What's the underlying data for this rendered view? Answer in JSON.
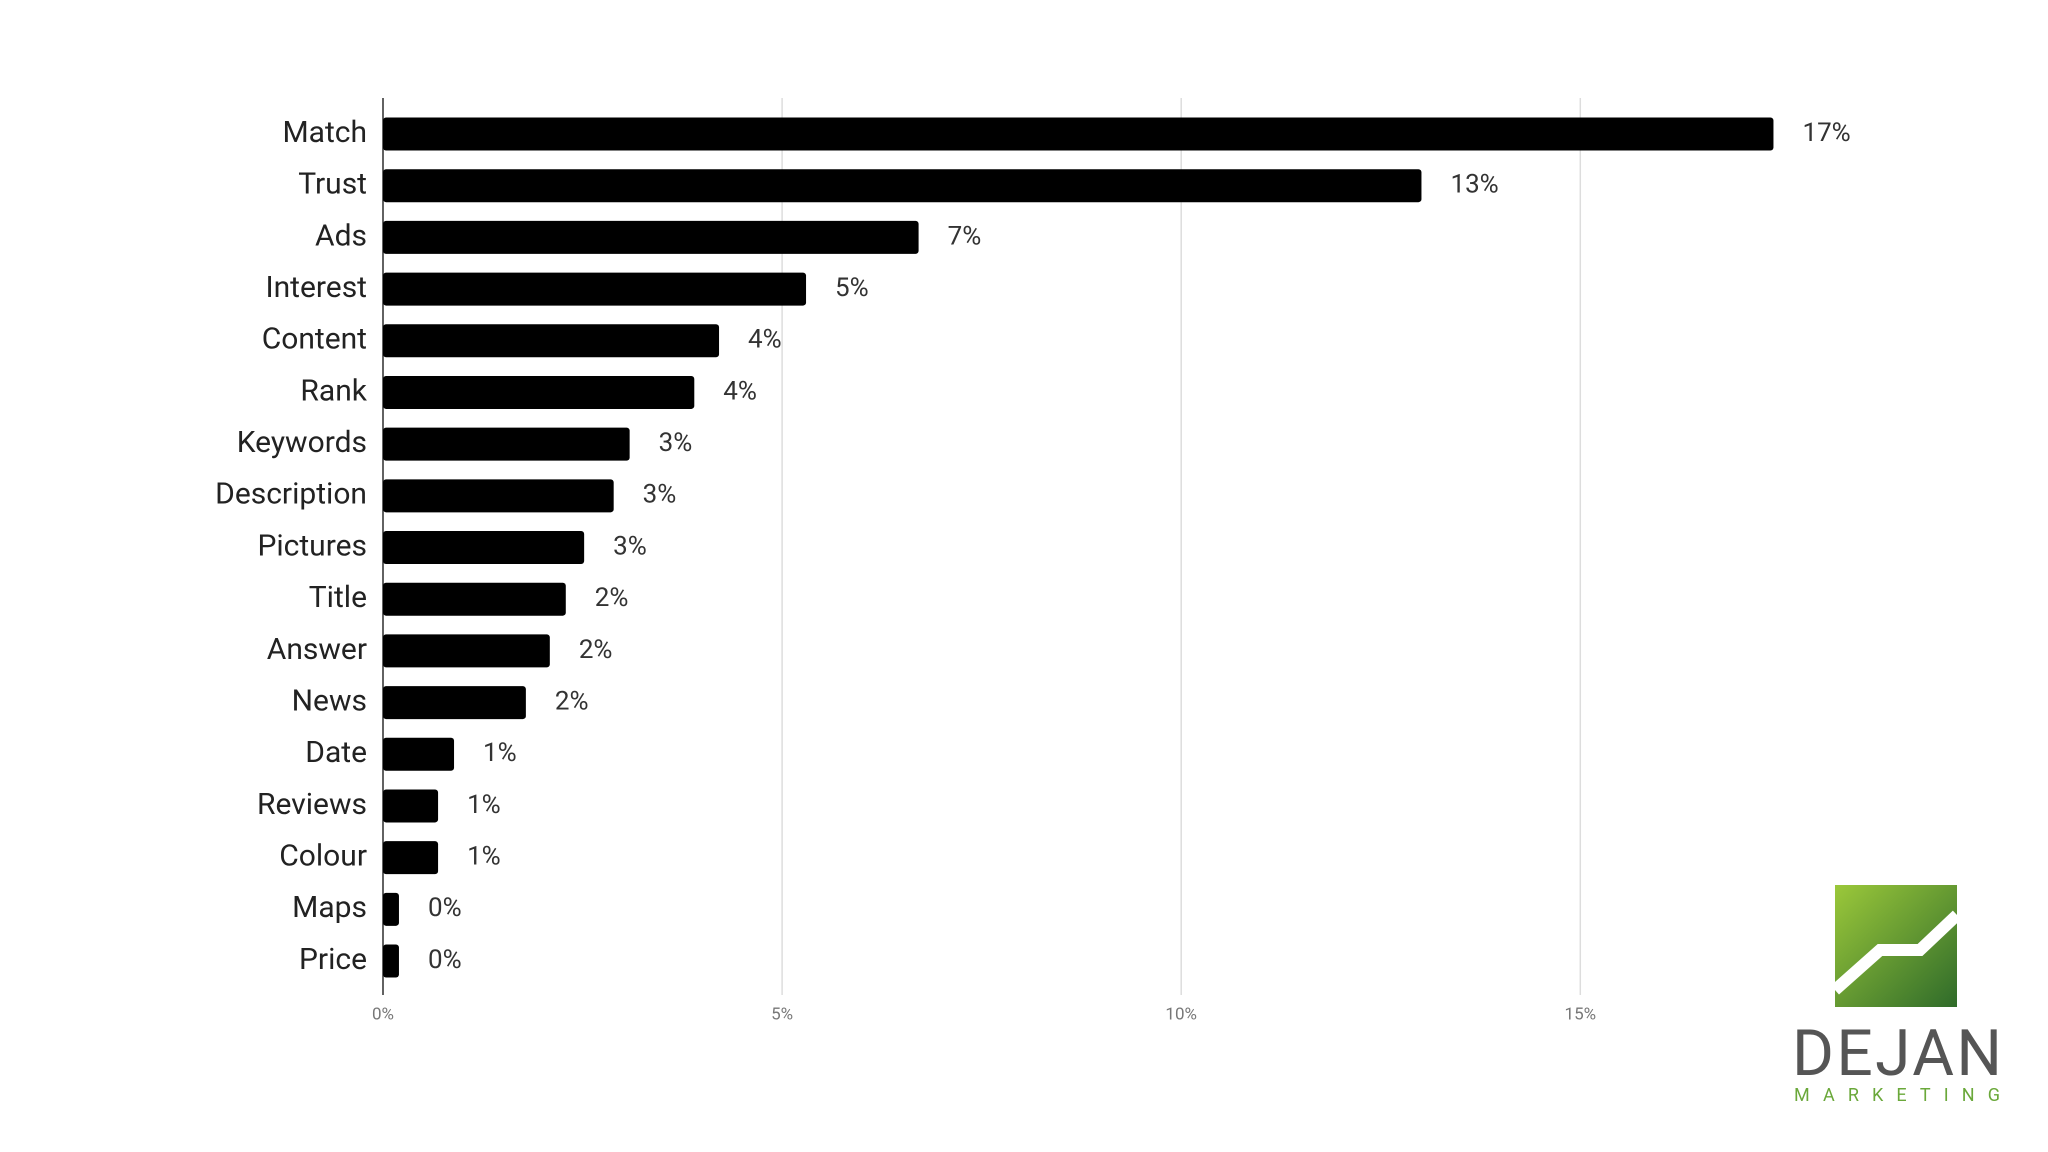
{
  "chart_data": {
    "type": "bar",
    "orientation": "horizontal",
    "color": "#000000",
    "categories": [
      "Match",
      "Trust",
      "Ads",
      "Interest",
      "Content",
      "Rank",
      "Keywords",
      "Description",
      "Pictures",
      "Title",
      "Answer",
      "News",
      "Date",
      "Reviews",
      "Colour",
      "Maps",
      "Price"
    ],
    "values": [
      17.42,
      13.01,
      6.71,
      5.3,
      4.21,
      3.9,
      3.09,
      2.89,
      2.52,
      2.29,
      2.09,
      1.79,
      0.89,
      0.69,
      0.69,
      0.2,
      0.2
    ],
    "value_labels": [
      "17%",
      "13%",
      "7%",
      "5%",
      "4%",
      "4%",
      "3%",
      "3%",
      "3%",
      "2%",
      "2%",
      "2%",
      "1%",
      "1%",
      "1%",
      "0%",
      "0%"
    ],
    "xlim": [
      0,
      18
    ],
    "xticks": [
      {
        "value": 0,
        "label": "0%"
      },
      {
        "value": 5,
        "label": "5%"
      },
      {
        "value": 10,
        "label": "10%"
      },
      {
        "value": 15,
        "label": "15%"
      }
    ],
    "grid": true
  },
  "logo": {
    "name": "DEJAN",
    "tagline": "MARKETING"
  }
}
